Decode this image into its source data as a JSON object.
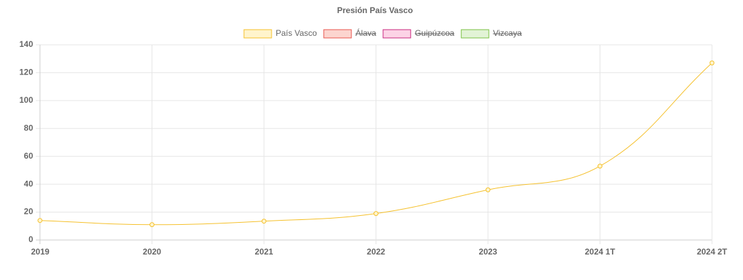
{
  "chart_data": {
    "type": "line",
    "title": "Presión País Vasco",
    "categories": [
      "2019",
      "2020",
      "2021",
      "2022",
      "2023",
      "2024 1T",
      "2024 2T"
    ],
    "series": [
      {
        "name": "País Vasco",
        "color": "#f5c02a",
        "fill": "#fff4cc",
        "values": [
          14,
          11,
          13.5,
          19,
          36,
          53,
          127
        ]
      },
      {
        "name": "Álava",
        "color": "#e8554e",
        "fill": "#fcd5cf",
        "hidden": true
      },
      {
        "name": "Guipúzcoa",
        "color": "#c9287f",
        "fill": "#fcd3e6",
        "hidden": true
      },
      {
        "name": "Vizcaya",
        "color": "#7ac143",
        "fill": "#e2f3d6",
        "hidden": true
      }
    ],
    "ylim": [
      0,
      140
    ],
    "yticks": [
      0,
      20,
      40,
      60,
      80,
      100,
      120,
      140
    ],
    "grid": true,
    "legend": "top"
  }
}
